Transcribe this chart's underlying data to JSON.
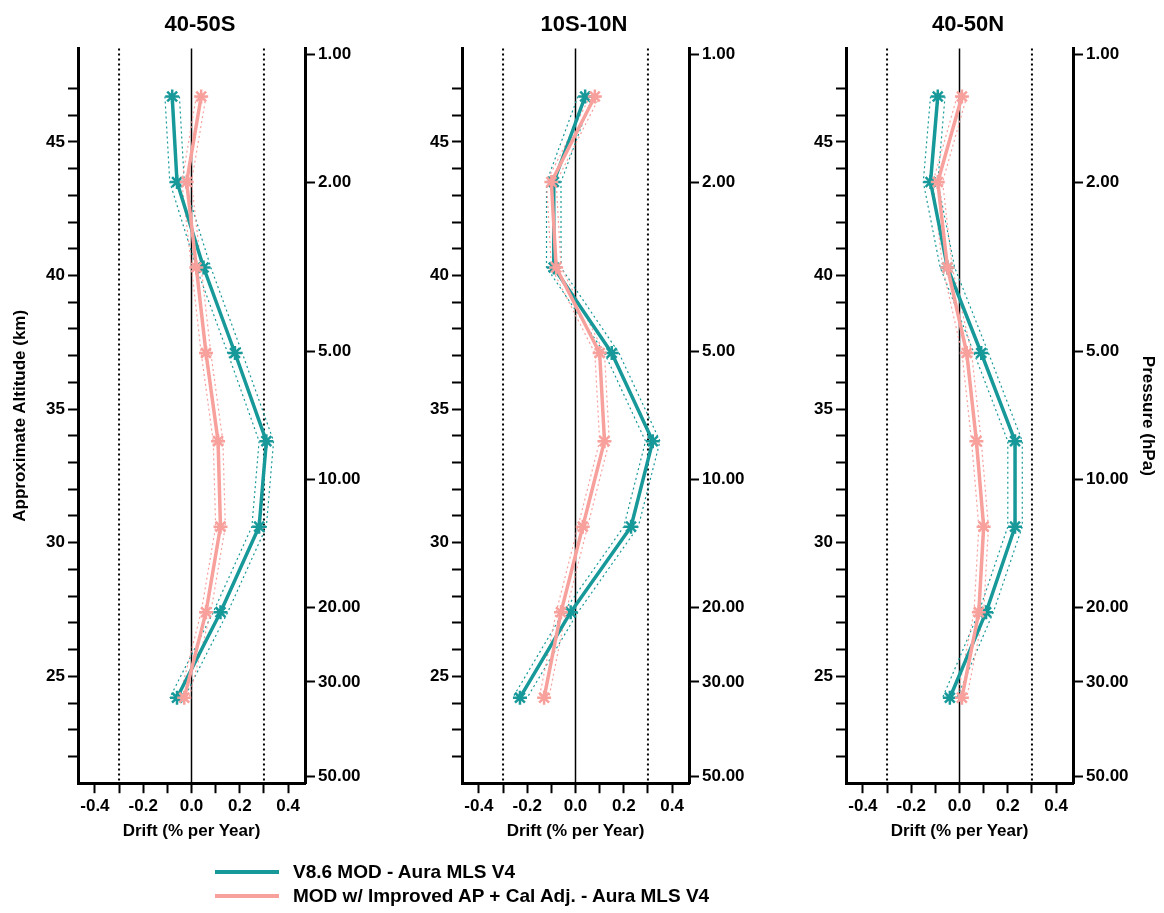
{
  "chart_data": [
    {
      "type": "line",
      "title": "40-50S",
      "xlabel": "Drift (% per Year)",
      "ylabel": "Approximate Altitude (km)",
      "xlim": [
        -0.47,
        0.47
      ],
      "xticks": [
        {
          "value": -0.4,
          "label": "-0.4"
        },
        {
          "value": -0.3,
          "label": null
        },
        {
          "value": -0.2,
          "label": "-0.2"
        },
        {
          "value": -0.1,
          "label": null
        },
        {
          "value": 0,
          "label": "0.0"
        },
        {
          "value": 0.1,
          "label": null
        },
        {
          "value": 0.2,
          "label": "0.2"
        },
        {
          "value": 0.3,
          "label": null
        },
        {
          "value": 0.4,
          "label": "0.4"
        }
      ],
      "ylim": [
        21,
        48.5
      ],
      "yticks": [
        {
          "value": 22,
          "label": null
        },
        {
          "value": 23,
          "label": null
        },
        {
          "value": 24,
          "label": null
        },
        25,
        {
          "value": 26,
          "label": null
        },
        {
          "value": 27,
          "label": null
        },
        {
          "value": 28,
          "label": null
        },
        {
          "value": 29,
          "label": null
        },
        30,
        {
          "value": 31,
          "label": null
        },
        {
          "value": 32,
          "label": null
        },
        {
          "value": 33,
          "label": null
        },
        {
          "value": 34,
          "label": null
        },
        35,
        {
          "value": 36,
          "label": null
        },
        {
          "value": 37,
          "label": null
        },
        {
          "value": 38,
          "label": null
        },
        {
          "value": 39,
          "label": null
        },
        40,
        {
          "value": 41,
          "label": null
        },
        {
          "value": 42,
          "label": null
        },
        {
          "value": 43,
          "label": null
        },
        {
          "value": 44,
          "label": null
        },
        45,
        {
          "value": 46,
          "label": null
        },
        {
          "value": 47,
          "label": null
        }
      ],
      "y2lim": [
        51.9,
        0.97
      ],
      "y2ticks": [
        {
          "value": 1,
          "label": "1.00"
        },
        {
          "value": 2,
          "label": "2.00"
        },
        {
          "value": 5,
          "label": "5.00"
        },
        {
          "value": 10,
          "label": "10.00"
        },
        {
          "value": 20,
          "label": "20.00"
        },
        {
          "value": 30,
          "label": "30.00"
        },
        {
          "value": 50,
          "label": "50.00"
        }
      ],
      "log": "y2",
      "marker": "cross",
      "ref_lines": [
        {
          "axis": "x",
          "value": 0,
          "color": "#000000",
          "line_style": "solid"
        },
        {
          "axis": "x",
          "value": -0.3,
          "color": "#000000",
          "line_style": "dotted"
        },
        {
          "axis": "x",
          "value": 0.3,
          "color": "#000000",
          "line_style": "dotted"
        }
      ],
      "series": [
        {
          "color": "#17999a",
          "line_style": "dotted",
          "marker": "none",
          "x": [
            -0.11,
            -0.09,
            0.02,
            0.15,
            0.28,
            0.25,
            0.09,
            -0.09
          ],
          "values": [
            46.7,
            43.5,
            40.3,
            37.1,
            33.8,
            30.6,
            27.4,
            24.2
          ]
        },
        {
          "color": "#17999a",
          "line_style": "dotted",
          "marker": "none",
          "x": [
            -0.05,
            -0.03,
            0.08,
            0.21,
            0.34,
            0.31,
            0.15,
            -0.03
          ],
          "values": [
            46.7,
            43.5,
            40.3,
            37.1,
            33.8,
            30.6,
            27.4,
            24.2
          ]
        },
        {
          "color": "#f7a09c",
          "line_style": "dotted",
          "marker": "none",
          "x": [
            0.02,
            -0.04,
            0.0,
            0.04,
            0.09,
            0.1,
            0.04,
            -0.05
          ],
          "values": [
            46.7,
            43.5,
            40.3,
            37.1,
            33.8,
            30.6,
            27.4,
            24.2
          ]
        },
        {
          "color": "#f7a09c",
          "line_style": "dotted",
          "marker": "none",
          "x": [
            0.06,
            0.0,
            0.04,
            0.08,
            0.13,
            0.14,
            0.08,
            -0.01
          ],
          "values": [
            46.7,
            43.5,
            40.3,
            37.1,
            33.8,
            30.6,
            27.4,
            24.2
          ]
        },
        {
          "color": "#17999a",
          "line_style": "solid",
          "x": [
            -0.08,
            -0.06,
            0.05,
            0.18,
            0.31,
            0.28,
            0.12,
            -0.06
          ],
          "values": [
            46.7,
            43.5,
            40.3,
            37.1,
            33.8,
            30.6,
            27.4,
            24.2
          ]
        },
        {
          "color": "#f7a09c",
          "line_style": "solid",
          "x": [
            0.04,
            -0.02,
            0.02,
            0.06,
            0.11,
            0.12,
            0.06,
            -0.03
          ],
          "values": [
            46.7,
            43.5,
            40.3,
            37.1,
            33.8,
            30.6,
            27.4,
            24.2
          ]
        }
      ]
    },
    {
      "type": "line",
      "title": "10S-10N",
      "xlabel": "Drift (% per Year)",
      "xlim": [
        -0.47,
        0.47
      ],
      "xticks": [
        {
          "value": -0.4,
          "label": "-0.4"
        },
        {
          "value": -0.3,
          "label": null
        },
        {
          "value": -0.2,
          "label": "-0.2"
        },
        {
          "value": -0.1,
          "label": null
        },
        {
          "value": 0,
          "label": "0.0"
        },
        {
          "value": 0.1,
          "label": null
        },
        {
          "value": 0.2,
          "label": "0.2"
        },
        {
          "value": 0.3,
          "label": null
        },
        {
          "value": 0.4,
          "label": "0.4"
        }
      ],
      "ylim": [
        21,
        48.5
      ],
      "yticks": [
        {
          "value": 22,
          "label": null
        },
        {
          "value": 23,
          "label": null
        },
        {
          "value": 24,
          "label": null
        },
        25,
        {
          "value": 26,
          "label": null
        },
        {
          "value": 27,
          "label": null
        },
        {
          "value": 28,
          "label": null
        },
        {
          "value": 29,
          "label": null
        },
        30,
        {
          "value": 31,
          "label": null
        },
        {
          "value": 32,
          "label": null
        },
        {
          "value": 33,
          "label": null
        },
        {
          "value": 34,
          "label": null
        },
        35,
        {
          "value": 36,
          "label": null
        },
        {
          "value": 37,
          "label": null
        },
        {
          "value": 38,
          "label": null
        },
        {
          "value": 39,
          "label": null
        },
        40,
        {
          "value": 41,
          "label": null
        },
        {
          "value": 42,
          "label": null
        },
        {
          "value": 43,
          "label": null
        },
        {
          "value": 44,
          "label": null
        },
        45,
        {
          "value": 46,
          "label": null
        },
        {
          "value": 47,
          "label": null
        }
      ],
      "y2lim": [
        51.9,
        0.97
      ],
      "y2ticks": [
        {
          "value": 1,
          "label": "1.00"
        },
        {
          "value": 2,
          "label": "2.00"
        },
        {
          "value": 5,
          "label": "5.00"
        },
        {
          "value": 10,
          "label": "10.00"
        },
        {
          "value": 20,
          "label": "20.00"
        },
        {
          "value": 30,
          "label": "30.00"
        },
        {
          "value": 50,
          "label": "50.00"
        }
      ],
      "log": "y2",
      "marker": "cross",
      "legend": "bottom",
      "ref_lines": [
        {
          "axis": "x",
          "value": 0,
          "color": "#000000",
          "line_style": "solid"
        },
        {
          "axis": "x",
          "value": -0.3,
          "color": "#000000",
          "line_style": "dotted"
        },
        {
          "axis": "x",
          "value": 0.3,
          "color": "#000000",
          "line_style": "dotted"
        }
      ],
      "series": [
        {
          "color": "#17999a",
          "line_style": "dotted",
          "marker": "none",
          "x": [
            0.01,
            -0.12,
            -0.12,
            0.12,
            0.29,
            0.2,
            -0.05,
            -0.26
          ],
          "values": [
            46.7,
            43.5,
            40.3,
            37.1,
            33.8,
            30.6,
            27.4,
            24.2
          ]
        },
        {
          "color": "#17999a",
          "line_style": "dotted",
          "marker": "none",
          "x": [
            0.07,
            -0.06,
            -0.06,
            0.18,
            0.35,
            0.26,
            0.01,
            -0.2
          ],
          "values": [
            46.7,
            43.5,
            40.3,
            37.1,
            33.8,
            30.6,
            27.4,
            24.2
          ]
        },
        {
          "color": "#f7a09c",
          "line_style": "dotted",
          "marker": "none",
          "x": [
            0.06,
            -0.12,
            -0.1,
            0.08,
            0.1,
            0.01,
            -0.08,
            -0.15
          ],
          "values": [
            46.7,
            43.5,
            40.3,
            37.1,
            33.8,
            30.6,
            27.4,
            24.2
          ]
        },
        {
          "color": "#f7a09c",
          "line_style": "dotted",
          "marker": "none",
          "x": [
            0.1,
            -0.08,
            -0.06,
            0.12,
            0.14,
            0.05,
            -0.04,
            -0.11
          ],
          "values": [
            46.7,
            43.5,
            40.3,
            37.1,
            33.8,
            30.6,
            27.4,
            24.2
          ]
        },
        {
          "name": "V8.6 MOD - Aura MLS V4",
          "color": "#17999a",
          "line_style": "solid",
          "x": [
            0.04,
            -0.09,
            -0.09,
            0.15,
            0.32,
            0.23,
            -0.02,
            -0.23
          ],
          "values": [
            46.7,
            43.5,
            40.3,
            37.1,
            33.8,
            30.6,
            27.4,
            24.2
          ]
        },
        {
          "name": "MOD w/ Improved AP + Cal Adj. - Aura MLS V4",
          "color": "#f7a09c",
          "line_style": "solid",
          "x": [
            0.08,
            -0.1,
            -0.08,
            0.1,
            0.12,
            0.03,
            -0.06,
            -0.13
          ],
          "values": [
            46.7,
            43.5,
            40.3,
            37.1,
            33.8,
            30.6,
            27.4,
            24.2
          ]
        }
      ]
    },
    {
      "type": "line",
      "title": "40-50N",
      "xlabel": "Drift (% per Year)",
      "y2label": "Pressure (hPa)",
      "xlim": [
        -0.47,
        0.47
      ],
      "xticks": [
        {
          "value": -0.4,
          "label": "-0.4"
        },
        {
          "value": -0.3,
          "label": null
        },
        {
          "value": -0.2,
          "label": "-0.2"
        },
        {
          "value": -0.1,
          "label": null
        },
        {
          "value": 0,
          "label": "0.0"
        },
        {
          "value": 0.1,
          "label": null
        },
        {
          "value": 0.2,
          "label": "0.2"
        },
        {
          "value": 0.3,
          "label": null
        },
        {
          "value": 0.4,
          "label": "0.4"
        }
      ],
      "ylim": [
        21,
        48.5
      ],
      "yticks": [
        {
          "value": 22,
          "label": null
        },
        {
          "value": 23,
          "label": null
        },
        {
          "value": 24,
          "label": null
        },
        25,
        {
          "value": 26,
          "label": null
        },
        {
          "value": 27,
          "label": null
        },
        {
          "value": 28,
          "label": null
        },
        {
          "value": 29,
          "label": null
        },
        30,
        {
          "value": 31,
          "label": null
        },
        {
          "value": 32,
          "label": null
        },
        {
          "value": 33,
          "label": null
        },
        {
          "value": 34,
          "label": null
        },
        35,
        {
          "value": 36,
          "label": null
        },
        {
          "value": 37,
          "label": null
        },
        {
          "value": 38,
          "label": null
        },
        {
          "value": 39,
          "label": null
        },
        40,
        {
          "value": 41,
          "label": null
        },
        {
          "value": 42,
          "label": null
        },
        {
          "value": 43,
          "label": null
        },
        {
          "value": 44,
          "label": null
        },
        45,
        {
          "value": 46,
          "label": null
        },
        {
          "value": 47,
          "label": null
        }
      ],
      "y2lim": [
        51.9,
        0.97
      ],
      "y2ticks": [
        {
          "value": 1,
          "label": "1.00"
        },
        {
          "value": 2,
          "label": "2.00"
        },
        {
          "value": 5,
          "label": "5.00"
        },
        {
          "value": 10,
          "label": "10.00"
        },
        {
          "value": 20,
          "label": "20.00"
        },
        {
          "value": 30,
          "label": "30.00"
        },
        {
          "value": 50,
          "label": "50.00"
        }
      ],
      "log": "y2",
      "marker": "cross",
      "ref_lines": [
        {
          "axis": "x",
          "value": 0,
          "color": "#000000",
          "line_style": "solid"
        },
        {
          "axis": "x",
          "value": -0.3,
          "color": "#000000",
          "line_style": "dotted"
        },
        {
          "axis": "x",
          "value": 0.3,
          "color": "#000000",
          "line_style": "dotted"
        }
      ],
      "series": [
        {
          "color": "#17999a",
          "line_style": "dotted",
          "marker": "none",
          "x": [
            -0.12,
            -0.15,
            -0.08,
            0.06,
            0.2,
            0.2,
            0.08,
            -0.07
          ],
          "values": [
            46.7,
            43.5,
            40.3,
            37.1,
            33.8,
            30.6,
            27.4,
            24.2
          ]
        },
        {
          "color": "#17999a",
          "line_style": "dotted",
          "marker": "none",
          "x": [
            -0.06,
            -0.09,
            -0.02,
            0.12,
            0.26,
            0.26,
            0.14,
            -0.01
          ],
          "values": [
            46.7,
            43.5,
            40.3,
            37.1,
            33.8,
            30.6,
            27.4,
            24.2
          ]
        },
        {
          "color": "#f7a09c",
          "line_style": "dotted",
          "marker": "none",
          "x": [
            -0.01,
            -0.11,
            -0.07,
            0.01,
            0.05,
            0.08,
            0.06,
            -0.01
          ],
          "values": [
            46.7,
            43.5,
            40.3,
            37.1,
            33.8,
            30.6,
            27.4,
            24.2
          ]
        },
        {
          "color": "#f7a09c",
          "line_style": "dotted",
          "marker": "none",
          "x": [
            0.03,
            -0.07,
            -0.03,
            0.05,
            0.09,
            0.12,
            0.1,
            0.03
          ],
          "values": [
            46.7,
            43.5,
            40.3,
            37.1,
            33.8,
            30.6,
            27.4,
            24.2
          ]
        },
        {
          "color": "#17999a",
          "line_style": "solid",
          "x": [
            -0.09,
            -0.12,
            -0.05,
            0.09,
            0.23,
            0.23,
            0.11,
            -0.04
          ],
          "values": [
            46.7,
            43.5,
            40.3,
            37.1,
            33.8,
            30.6,
            27.4,
            24.2
          ]
        },
        {
          "color": "#f7a09c",
          "line_style": "solid",
          "x": [
            0.01,
            -0.09,
            -0.05,
            0.03,
            0.07,
            0.1,
            0.08,
            0.01
          ],
          "values": [
            46.7,
            43.5,
            40.3,
            37.1,
            33.8,
            30.6,
            27.4,
            24.2
          ]
        }
      ]
    }
  ]
}
